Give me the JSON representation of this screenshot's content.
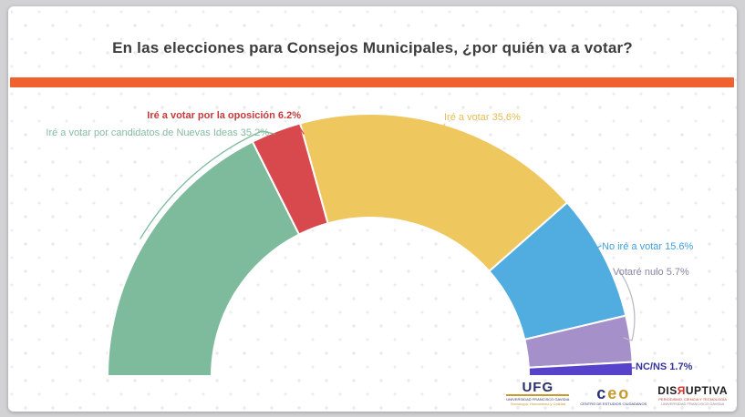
{
  "title": "En las elecciones para Consejos Municipales, ¿por quién va a votar?",
  "colors": {
    "accent_bar": "#f1602f",
    "title": "#3c3c3c",
    "page_bg": "#d2d2d5",
    "card_bg": "#ffffff",
    "slice_gap": "#ffffff",
    "bracket_gray": "#bcbcc8"
  },
  "chart_data": {
    "type": "pie",
    "variant": "half-donut",
    "unit": "%",
    "start_angle_deg": 180,
    "end_angle_deg": 0,
    "inner_radius_ratio": 0.6,
    "title": "En las elecciones para Consejos Municipales, ¿por quién va a votar?",
    "slices": [
      {
        "id": "nuevas-ideas",
        "label": "Iré a votar por candidatos de Nuevas Ideas",
        "value": 35.2,
        "display": "Iré a votar por candidatos de Nuevas Ideas 35.2%",
        "color": "#7dbb9c",
        "label_color": "#86bda2"
      },
      {
        "id": "oposicion",
        "label": "Iré a votar por la oposición",
        "value": 6.2,
        "display": "Iré a votar por la oposición 6.2%",
        "color": "#d8494e",
        "label_color": "#c53b3b"
      },
      {
        "id": "ire-a-votar",
        "label": "Iré a votar",
        "value": 35.6,
        "display": "Iré a votar 35.6%",
        "color": "#eec75f",
        "label_color": "#e3bd58"
      },
      {
        "id": "no-ire-a-votar",
        "label": "No iré a votar",
        "value": 15.6,
        "display": "No iré a votar 15.6%",
        "color": "#51acdf",
        "label_color": "#44a0da"
      },
      {
        "id": "votare-nulo",
        "label": "Votaré nulo",
        "value": 5.7,
        "display": "Votaré nulo 5.7%",
        "color": "#a690c9",
        "label_color": "#8b87a5"
      },
      {
        "id": "nc-ns",
        "label": "NC/NS",
        "value": 1.7,
        "display": "NC/NS 1.7%",
        "color": "#5743cb",
        "label_color": "#34349b"
      }
    ]
  },
  "footer": {
    "ufg": {
      "name": "UFG",
      "sub1": "UNIVERSIDAD FRANCISCO GAVIDIA",
      "sub2": "Tecnología, Humanismo y Calidad"
    },
    "ceo": {
      "c": "c",
      "e": "e",
      "o": "o",
      "sub": "CENTRO DE ESTUDIOS CIUDADANOS"
    },
    "disruptiva": {
      "name_pre": "DIS",
      "name_r": "Я",
      "name_post": "UPTIVA",
      "sub1": "PERIODISMO, CIENCIA Y TECNOLOGÍA",
      "sub2": "UNIVERSIDAD FRANCISCO GAVIDIA"
    }
  }
}
